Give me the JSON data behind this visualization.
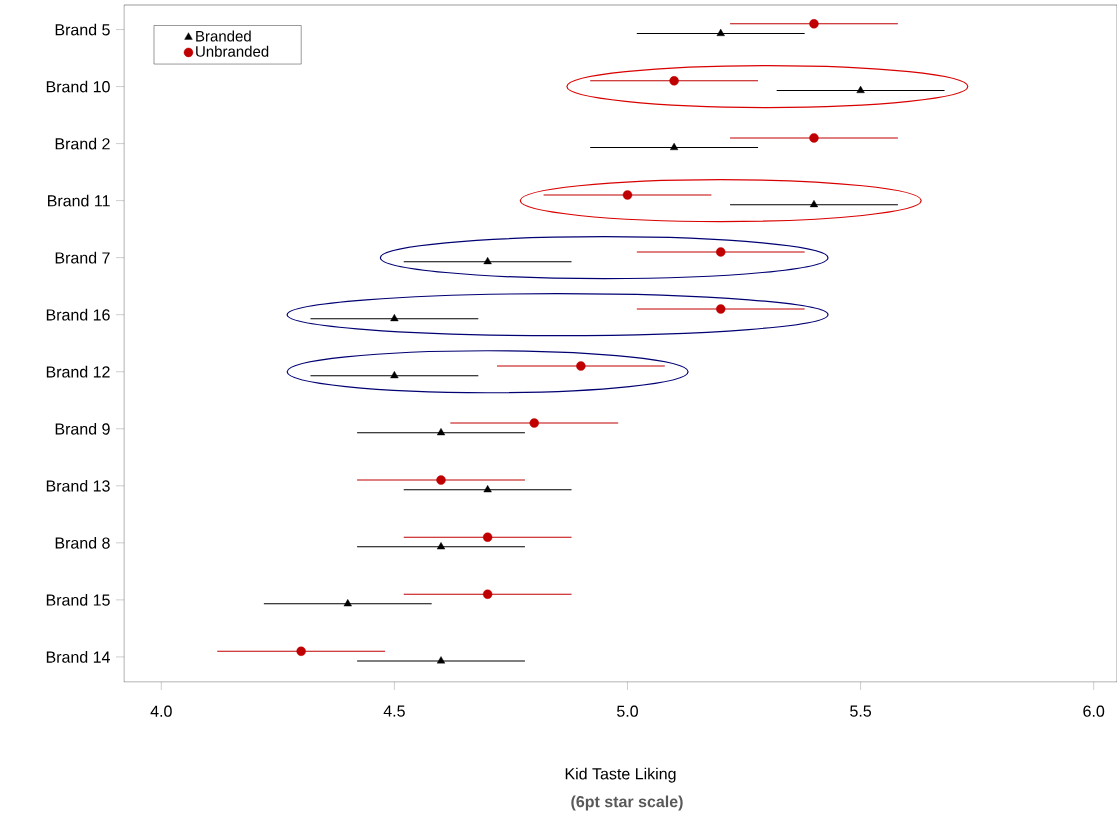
{
  "chart_data": {
    "type": "scatter",
    "xlabel": "Kid Taste Liking",
    "annotations": [
      "(6pt star scale)"
    ],
    "categories": [
      "Brand 5",
      "Brand 10",
      "Brand 2",
      "Brand 11",
      "Brand 7",
      "Brand 16",
      "Brand 12",
      "Brand 9",
      "Brand 13",
      "Brand 8",
      "Brand 15",
      "Brand 14"
    ],
    "series": [
      {
        "name": "Branded",
        "color": "#000000",
        "marker": "triangle",
        "values": [
          5.2,
          5.5,
          5.1,
          5.4,
          4.7,
          4.5,
          4.5,
          4.6,
          4.7,
          4.6,
          4.4,
          4.6
        ],
        "errors": [
          0.18,
          0.18,
          0.18,
          0.18,
          0.18,
          0.18,
          0.18,
          0.18,
          0.18,
          0.18,
          0.18,
          0.18
        ]
      },
      {
        "name": "Unbranded",
        "color": "#c00000",
        "marker": "circle",
        "values": [
          5.4,
          5.1,
          5.4,
          5.0,
          5.2,
          5.2,
          4.9,
          4.8,
          4.6,
          4.7,
          4.7,
          4.3
        ],
        "errors": [
          0.18,
          0.18,
          0.18,
          0.18,
          0.18,
          0.18,
          0.18,
          0.18,
          0.18,
          0.18,
          0.18,
          0.18
        ]
      }
    ],
    "orientation": "horizontal",
    "xlim": [
      3.92,
      6.05
    ],
    "xticks": [
      {
        "value": 4.0,
        "label": "4.0"
      },
      {
        "value": 4.5,
        "label": "4.5"
      },
      {
        "value": 5.0,
        "label": "5.0"
      },
      {
        "value": 5.5,
        "label": "5.5"
      },
      {
        "value": 6.0,
        "label": "6.0"
      }
    ],
    "grid": false,
    "legend": "top left"
  }
}
